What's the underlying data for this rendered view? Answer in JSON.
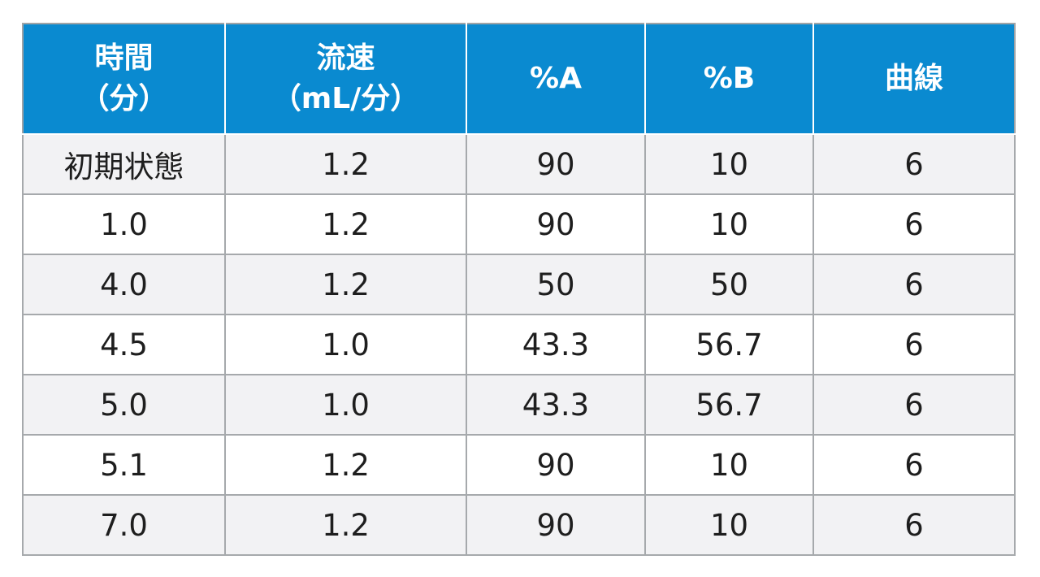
{
  "headers": [
    {
      "lines": [
        "時間",
        "（分）"
      ]
    },
    {
      "lines": [
        "流速",
        "（mL/分）"
      ]
    },
    {
      "lines": [
        "%A"
      ]
    },
    {
      "lines": [
        "%B"
      ]
    },
    {
      "lines": [
        "曲線"
      ]
    }
  ],
  "rows": [
    [
      "初期状態",
      "1.2",
      "90",
      "10",
      "6"
    ],
    [
      "1.0",
      "1.2",
      "90",
      "10",
      "6"
    ],
    [
      "4.0",
      "1.2",
      "50",
      "50",
      "6"
    ],
    [
      "4.5",
      "1.0",
      "43.3",
      "56.7",
      "6"
    ],
    [
      "5.0",
      "1.0",
      "43.3",
      "56.7",
      "6"
    ],
    [
      "5.1",
      "1.2",
      "90",
      "10",
      "6"
    ],
    [
      "7.0",
      "1.2",
      "90",
      "10",
      "6"
    ]
  ],
  "colors": {
    "header_bg": "#0a8ad0",
    "header_text": "#ffffff",
    "row_alt_bg": "#f2f2f4",
    "row_bg": "#ffffff",
    "border": "#a6a9ac"
  }
}
